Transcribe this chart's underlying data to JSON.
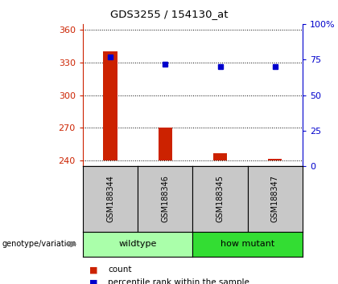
{
  "title": "GDS3255 / 154130_at",
  "samples": [
    "GSM188344",
    "GSM188346",
    "GSM188345",
    "GSM188347"
  ],
  "counts": [
    340,
    270,
    247,
    242
  ],
  "percentile_ranks": [
    77,
    72,
    70,
    70
  ],
  "ylim_left": [
    235,
    365
  ],
  "ylim_right": [
    0,
    100
  ],
  "yticks_left": [
    240,
    270,
    300,
    330,
    360
  ],
  "yticks_right": [
    0,
    25,
    50,
    75,
    100
  ],
  "bar_color": "#CC2200",
  "dot_color": "#0000CC",
  "label_color_left": "#CC2200",
  "label_color_right": "#0000CC",
  "bar_bottom": 240,
  "background_label": "#C8C8C8",
  "background_wildtype": "#AAFFAA",
  "background_howmutant": "#33DD33",
  "wildtype_label": "wildtype",
  "howmutant_label": "how mutant",
  "genotype_label": "genotype/variation",
  "legend_count": "count",
  "legend_pct": "percentile rank within the sample",
  "bar_width": 0.25
}
